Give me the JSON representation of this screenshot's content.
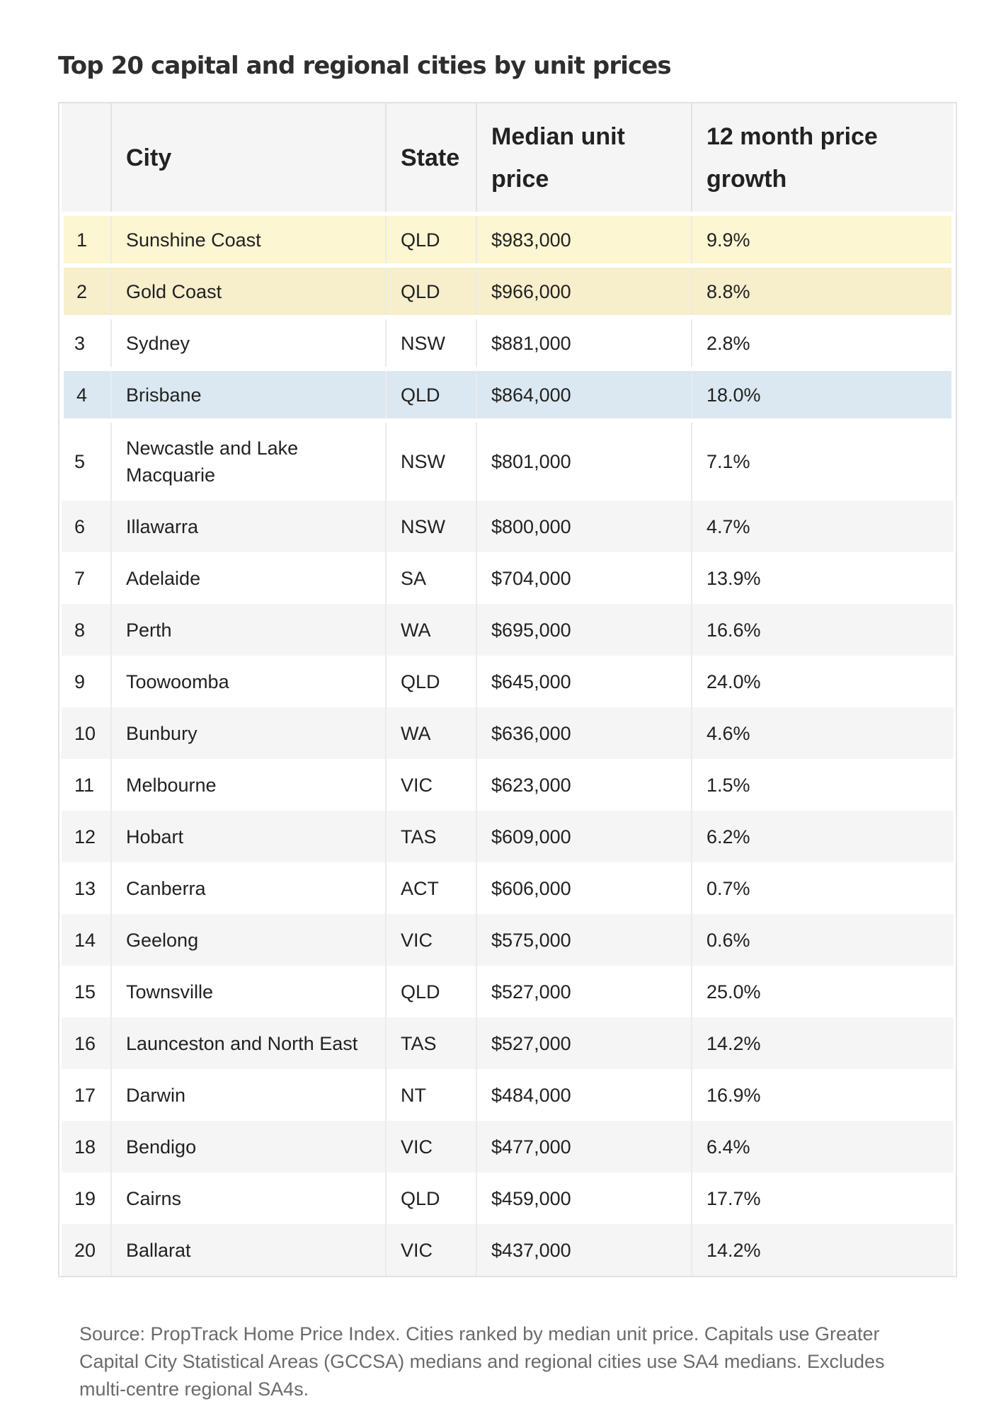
{
  "title": "Top 20 capital and regional cities by unit prices",
  "table": {
    "headers": {
      "rank": "",
      "city": "City",
      "state": "State",
      "price": "Median unit price",
      "growth": "12 month price growth"
    },
    "rows": [
      {
        "rank": "1",
        "city": "Sunshine Coast",
        "state": "QLD",
        "price": "$983,000",
        "growth": "9.9%"
      },
      {
        "rank": "2",
        "city": "Gold Coast",
        "state": "QLD",
        "price": "$966,000",
        "growth": "8.8%"
      },
      {
        "rank": "3",
        "city": "Sydney",
        "state": "NSW",
        "price": "$881,000",
        "growth": "2.8%"
      },
      {
        "rank": "4",
        "city": "Brisbane",
        "state": "QLD",
        "price": "$864,000",
        "growth": "18.0%"
      },
      {
        "rank": "5",
        "city": "Newcastle and Lake Macquarie",
        "state": "NSW",
        "price": "$801,000",
        "growth": "7.1%"
      },
      {
        "rank": "6",
        "city": "Illawarra",
        "state": "NSW",
        "price": "$800,000",
        "growth": "4.7%"
      },
      {
        "rank": "7",
        "city": "Adelaide",
        "state": "SA",
        "price": "$704,000",
        "growth": "13.9%"
      },
      {
        "rank": "8",
        "city": "Perth",
        "state": "WA",
        "price": "$695,000",
        "growth": "16.6%"
      },
      {
        "rank": "9",
        "city": "Toowoomba",
        "state": "QLD",
        "price": "$645,000",
        "growth": "24.0%"
      },
      {
        "rank": "10",
        "city": "Bunbury",
        "state": "WA",
        "price": "$636,000",
        "growth": "4.6%"
      },
      {
        "rank": "11",
        "city": "Melbourne",
        "state": "VIC",
        "price": "$623,000",
        "growth": "1.5%"
      },
      {
        "rank": "12",
        "city": "Hobart",
        "state": "TAS",
        "price": "$609,000",
        "growth": "6.2%"
      },
      {
        "rank": "13",
        "city": "Canberra",
        "state": "ACT",
        "price": "$606,000",
        "growth": "0.7%"
      },
      {
        "rank": "14",
        "city": "Geelong",
        "state": "VIC",
        "price": "$575,000",
        "growth": "0.6%"
      },
      {
        "rank": "15",
        "city": "Townsville",
        "state": "QLD",
        "price": "$527,000",
        "growth": "25.0%"
      },
      {
        "rank": "16",
        "city": "Launceston and North East",
        "state": "TAS",
        "price": "$527,000",
        "growth": "14.2%"
      },
      {
        "rank": "17",
        "city": "Darwin",
        "state": "NT",
        "price": "$484,000",
        "growth": "16.9%"
      },
      {
        "rank": "18",
        "city": "Bendigo",
        "state": "VIC",
        "price": "$477,000",
        "growth": "6.4%"
      },
      {
        "rank": "19",
        "city": "Cairns",
        "state": "QLD",
        "price": "$459,000",
        "growth": "17.7%"
      },
      {
        "rank": "20",
        "city": "Ballarat",
        "state": "VIC",
        "price": "$437,000",
        "growth": "14.2%"
      }
    ]
  },
  "highlight_colors": {
    "yellow_light": "#fcf6d2",
    "yellow": "#f7eecb",
    "blue": "#dbe8f1"
  },
  "source_note": "Source: PropTrack Home Price Index. Cities ranked by median unit price. Capitals use Greater Capital City Statistical Areas (GCCSA) medians and regional cities use SA4 medians. Excludes multi-centre regional SA4s."
}
